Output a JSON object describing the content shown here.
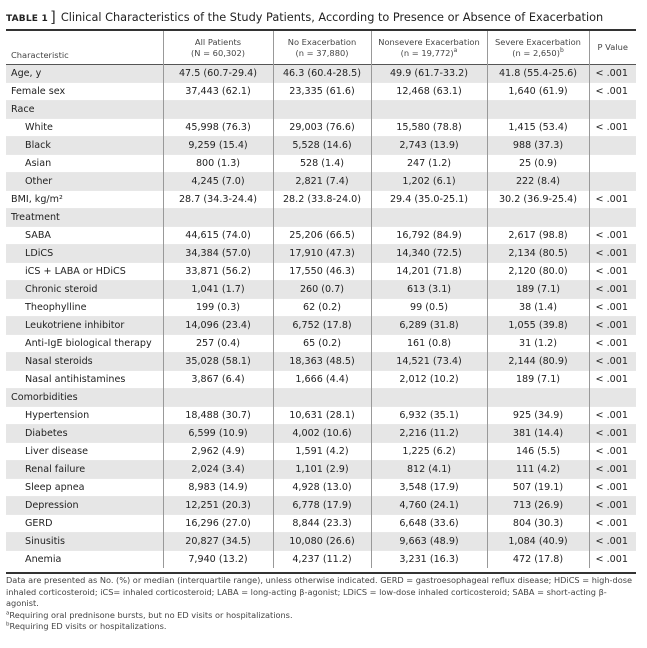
{
  "table_label": "TABLE 1",
  "title": "Clinical Characteristics of the Study Patients, According to Presence or Absence of Exacerbation",
  "columns": [
    {
      "line1": "Characteristic",
      "line2": "",
      "note": ""
    },
    {
      "line1": "All Patients",
      "line2": "(N = 60,302)",
      "note": ""
    },
    {
      "line1": "No Exacerbation",
      "line2": "(n = 37,880)",
      "note": ""
    },
    {
      "line1": "Nonsevere Exacerbation",
      "line2": "(n = 19,772)",
      "note": "a"
    },
    {
      "line1": "Severe Exacerbation",
      "line2": "(n = 2,650)",
      "note": "b"
    },
    {
      "line1": "P Value",
      "line2": "",
      "note": ""
    }
  ],
  "rows": [
    {
      "label": "Age, y",
      "indent": false,
      "cells": [
        "47.5 (60.7-29.4)",
        "46.3 (60.4-28.5)",
        "49.9 (61.7-33.2)",
        "41.8 (55.4-25.6)",
        "< .001"
      ]
    },
    {
      "label": "Female sex",
      "indent": false,
      "cells": [
        "37,443 (62.1)",
        "23,335 (61.6)",
        "12,468 (63.1)",
        "1,640 (61.9)",
        "< .001"
      ]
    },
    {
      "label": "Race",
      "indent": false,
      "cells": [
        "",
        "",
        "",
        "",
        ""
      ]
    },
    {
      "label": "White",
      "indent": true,
      "cells": [
        "45,998 (76.3)",
        "29,003 (76.6)",
        "15,580 (78.8)",
        "1,415 (53.4)",
        "< .001"
      ]
    },
    {
      "label": "Black",
      "indent": true,
      "cells": [
        "9,259 (15.4)",
        "5,528 (14.6)",
        "2,743 (13.9)",
        "988 (37.3)",
        ""
      ]
    },
    {
      "label": "Asian",
      "indent": true,
      "cells": [
        "800 (1.3)",
        "528 (1.4)",
        "247 (1.2)",
        "25 (0.9)",
        ""
      ]
    },
    {
      "label": "Other",
      "indent": true,
      "cells": [
        "4,245 (7.0)",
        "2,821 (7.4)",
        "1,202 (6.1)",
        "222 (8.4)",
        ""
      ]
    },
    {
      "label": "BMI, kg/m²",
      "indent": false,
      "cells": [
        "28.7 (34.3-24.4)",
        "28.2 (33.8-24.0)",
        "29.4 (35.0-25.1)",
        "30.2 (36.9-25.4)",
        "< .001"
      ]
    },
    {
      "label": "Treatment",
      "indent": false,
      "cells": [
        "",
        "",
        "",
        "",
        ""
      ]
    },
    {
      "label": "SABA",
      "indent": true,
      "cells": [
        "44,615 (74.0)",
        "25,206 (66.5)",
        "16,792 (84.9)",
        "2,617 (98.8)",
        "< .001"
      ]
    },
    {
      "label": "LDiCS",
      "indent": true,
      "cells": [
        "34,384 (57.0)",
        "17,910 (47.3)",
        "14,340 (72.5)",
        "2,134 (80.5)",
        "< .001"
      ]
    },
    {
      "label": "iCS + LABA or HDiCS",
      "indent": true,
      "cells": [
        "33,871 (56.2)",
        "17,550 (46.3)",
        "14,201 (71.8)",
        "2,120 (80.0)",
        "< .001"
      ]
    },
    {
      "label": "Chronic steroid",
      "indent": true,
      "cells": [
        "1,041 (1.7)",
        "260 (0.7)",
        "613 (3.1)",
        "189 (7.1)",
        "< .001"
      ]
    },
    {
      "label": "Theophylline",
      "indent": true,
      "cells": [
        "199 (0.3)",
        "62 (0.2)",
        "99 (0.5)",
        "38 (1.4)",
        "< .001"
      ]
    },
    {
      "label": "Leukotriene inhibitor",
      "indent": true,
      "cells": [
        "14,096 (23.4)",
        "6,752 (17.8)",
        "6,289 (31.8)",
        "1,055 (39.8)",
        "< .001"
      ]
    },
    {
      "label": "Anti-IgE biological therapy",
      "indent": true,
      "cells": [
        "257 (0.4)",
        "65 (0.2)",
        "161 (0.8)",
        "31 (1.2)",
        "< .001"
      ]
    },
    {
      "label": "Nasal steroids",
      "indent": true,
      "cells": [
        "35,028 (58.1)",
        "18,363 (48.5)",
        "14,521 (73.4)",
        "2,144 (80.9)",
        "< .001"
      ]
    },
    {
      "label": "Nasal antihistamines",
      "indent": true,
      "cells": [
        "3,867 (6.4)",
        "1,666 (4.4)",
        "2,012 (10.2)",
        "189 (7.1)",
        "< .001"
      ]
    },
    {
      "label": "Comorbidities",
      "indent": false,
      "cells": [
        "",
        "",
        "",
        "",
        ""
      ]
    },
    {
      "label": "Hypertension",
      "indent": true,
      "cells": [
        "18,488 (30.7)",
        "10,631 (28.1)",
        "6,932 (35.1)",
        "925 (34.9)",
        "< .001"
      ]
    },
    {
      "label": "Diabetes",
      "indent": true,
      "cells": [
        "6,599 (10.9)",
        "4,002 (10.6)",
        "2,216 (11.2)",
        "381 (14.4)",
        "< .001"
      ]
    },
    {
      "label": "Liver disease",
      "indent": true,
      "cells": [
        "2,962 (4.9)",
        "1,591 (4.2)",
        "1,225 (6.2)",
        "146 (5.5)",
        "< .001"
      ]
    },
    {
      "label": "Renal failure",
      "indent": true,
      "cells": [
        "2,024 (3.4)",
        "1,101 (2.9)",
        "812 (4.1)",
        "111 (4.2)",
        "< .001"
      ]
    },
    {
      "label": "Sleep apnea",
      "indent": true,
      "cells": [
        "8,983 (14.9)",
        "4,928 (13.0)",
        "3,548 (17.9)",
        "507 (19.1)",
        "< .001"
      ]
    },
    {
      "label": "Depression",
      "indent": true,
      "cells": [
        "12,251 (20.3)",
        "6,778 (17.9)",
        "4,760 (24.1)",
        "713 (26.9)",
        "< .001"
      ]
    },
    {
      "label": "GERD",
      "indent": true,
      "cells": [
        "16,296 (27.0)",
        "8,844 (23.3)",
        "6,648 (33.6)",
        "804 (30.3)",
        "< .001"
      ]
    },
    {
      "label": "Sinusitis",
      "indent": true,
      "cells": [
        "20,827 (34.5)",
        "10,080 (26.6)",
        "9,663 (48.9)",
        "1,084 (40.9)",
        "< .001"
      ]
    },
    {
      "label": "Anemia",
      "indent": true,
      "cells": [
        "7,940 (13.2)",
        "4,237 (11.2)",
        "3,231 (16.3)",
        "472 (17.8)",
        "< .001"
      ]
    }
  ],
  "footnotes": {
    "main": "Data are presented as No. (%) or median (interquartile range), unless otherwise indicated. GERD = gastroesophageal reflux disease; HDiCS = high-dose inhaled corticosteroid; iCS= inhaled corticosteroid; LABA = long-acting β-agonist; LDiCS = low-dose inhaled corticosteroid; SABA = short-acting β-agonist.",
    "a_mark": "a",
    "a": "Requiring oral prednisone bursts, but no ED visits or hospitalizations.",
    "b_mark": "b",
    "b": "Requiring ED visits or hospitalizations."
  },
  "colors": {
    "shade": "#e6e6e6",
    "rule": "#333333"
  }
}
